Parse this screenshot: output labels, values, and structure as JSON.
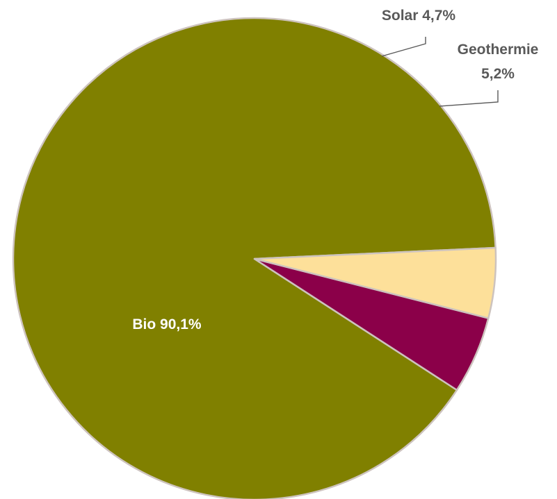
{
  "chart_data": {
    "type": "pie",
    "slices": [
      {
        "name": "Bio",
        "value": 90.1,
        "value_label": "90,1%",
        "color": "#808000",
        "label": "Bio 90,1%"
      },
      {
        "name": "Solar",
        "value": 4.7,
        "value_label": "4,7%",
        "color": "#fde09a",
        "label": "Solar 4,7%"
      },
      {
        "name": "Geothermie",
        "value": 5.2,
        "value_label": "5,2%",
        "color": "#8b0049",
        "label_line1": "Geothermie",
        "label_line2": "5,2%"
      }
    ],
    "label_color_inside": "#ffffff",
    "label_color_outside": "#595959",
    "legend": "none"
  }
}
